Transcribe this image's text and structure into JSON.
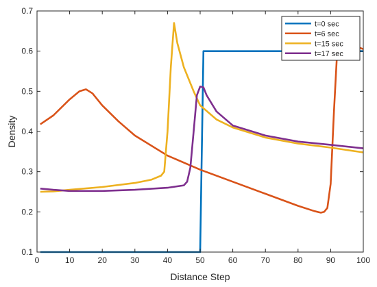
{
  "chart_data": {
    "type": "line",
    "title": "",
    "xlabel": "Distance Step",
    "ylabel": "Density",
    "xlim": [
      0,
      100
    ],
    "ylim": [
      0.1,
      0.7
    ],
    "xticks": [
      "0",
      "10",
      "20",
      "30",
      "40",
      "50",
      "60",
      "70",
      "80",
      "90",
      "100"
    ],
    "yticks": [
      "0.1",
      "0.2",
      "0.3",
      "0.4",
      "0.5",
      "0.6",
      "0.7"
    ],
    "grid": false,
    "legend_position": "top-right",
    "series": [
      {
        "name": "t=0 sec",
        "color": "#0072BD",
        "x": [
          1,
          50,
          51,
          100
        ],
        "y": [
          0.1,
          0.1,
          0.6,
          0.6
        ]
      },
      {
        "name": "t=6 sec",
        "color": "#D95319",
        "x": [
          1,
          5,
          10,
          13,
          15,
          17,
          20,
          25,
          30,
          40,
          50,
          60,
          70,
          80,
          85,
          87,
          88,
          89,
          90,
          91,
          92,
          95,
          100
        ],
        "y": [
          0.418,
          0.44,
          0.48,
          0.5,
          0.505,
          0.495,
          0.465,
          0.425,
          0.39,
          0.34,
          0.305,
          0.275,
          0.245,
          0.215,
          0.202,
          0.198,
          0.2,
          0.21,
          0.27,
          0.45,
          0.6,
          0.62,
          0.605
        ]
      },
      {
        "name": "t=15 sec",
        "color": "#EDB120",
        "x": [
          1,
          5,
          10,
          20,
          30,
          35,
          38,
          39,
          40,
          41,
          42,
          43,
          45,
          48,
          50,
          55,
          60,
          70,
          80,
          90,
          100
        ],
        "y": [
          0.25,
          0.251,
          0.255,
          0.262,
          0.272,
          0.28,
          0.29,
          0.3,
          0.4,
          0.56,
          0.67,
          0.62,
          0.56,
          0.5,
          0.465,
          0.43,
          0.41,
          0.385,
          0.37,
          0.36,
          0.348
        ]
      },
      {
        "name": "t=17 sec",
        "color": "#7E2F8E",
        "x": [
          1,
          5,
          10,
          20,
          30,
          40,
          45,
          46,
          47,
          48,
          49,
          50,
          51,
          52,
          55,
          60,
          70,
          80,
          90,
          100
        ],
        "y": [
          0.258,
          0.255,
          0.252,
          0.252,
          0.255,
          0.26,
          0.266,
          0.275,
          0.31,
          0.4,
          0.49,
          0.512,
          0.51,
          0.49,
          0.45,
          0.415,
          0.39,
          0.375,
          0.367,
          0.358
        ]
      }
    ]
  }
}
